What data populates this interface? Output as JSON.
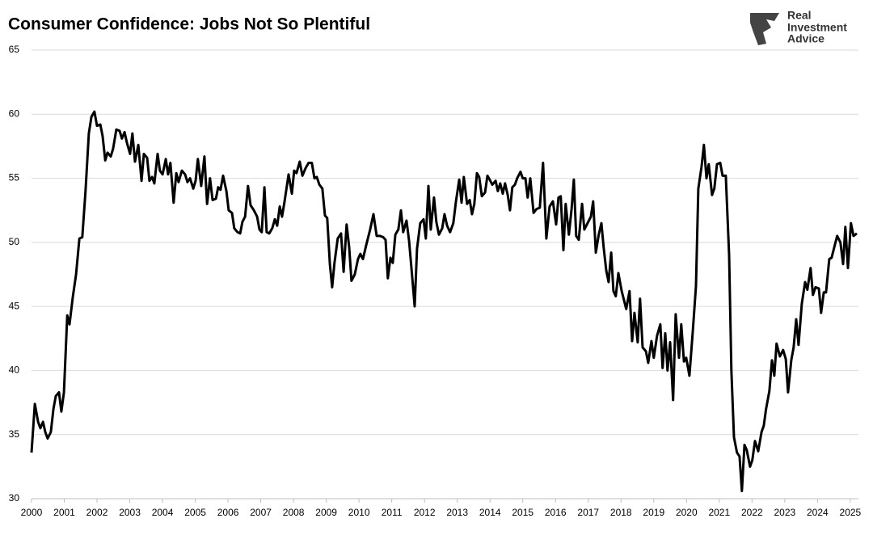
{
  "chart_data": {
    "type": "line",
    "title": "Consumer Confidence: Jobs Not So Plentiful",
    "logo": [
      "Real",
      "Investment",
      "Advice"
    ],
    "color": "#000000",
    "grid": true,
    "xlim": [
      2000,
      2025.25
    ],
    "xticks": [
      2000,
      2001,
      2002,
      2003,
      2004,
      2005,
      2006,
      2007,
      2008,
      2009,
      2010,
      2011,
      2012,
      2013,
      2014,
      2015,
      2016,
      2017,
      2018,
      2019,
      2020,
      2021,
      2022,
      2023,
      2024,
      2025
    ],
    "ylim": [
      30,
      65
    ],
    "yticks": [
      30,
      35,
      40,
      45,
      50,
      55,
      60,
      65
    ],
    "x": [
      2000.0,
      2000.1,
      2000.2,
      2000.27,
      2000.35,
      2000.42,
      2000.49,
      2000.59,
      2000.67,
      2000.74,
      2000.84,
      2000.91,
      2000.99,
      2001.09,
      2001.16,
      2001.26,
      2001.36,
      2001.46,
      2001.55,
      2001.65,
      2001.75,
      2001.83,
      2001.92,
      2002.0,
      2002.1,
      2002.17,
      2002.25,
      2002.32,
      2002.42,
      2002.49,
      2002.59,
      2002.69,
      2002.76,
      2002.84,
      2002.91,
      2003.01,
      2003.08,
      2003.16,
      2003.26,
      2003.36,
      2003.43,
      2003.53,
      2003.6,
      2003.68,
      2003.75,
      2003.85,
      2003.92,
      2004.0,
      2004.1,
      2004.17,
      2004.24,
      2004.34,
      2004.42,
      2004.49,
      2004.59,
      2004.69,
      2004.76,
      2004.84,
      2004.94,
      2005.01,
      2005.08,
      2005.18,
      2005.28,
      2005.36,
      2005.45,
      2005.53,
      2005.63,
      2005.7,
      2005.77,
      2005.85,
      2005.95,
      2006.02,
      2006.12,
      2006.19,
      2006.29,
      2006.37,
      2006.44,
      2006.52,
      2006.61,
      2006.69,
      2006.79,
      2006.89,
      2006.96,
      2007.03,
      2007.11,
      2007.18,
      2007.26,
      2007.35,
      2007.43,
      2007.5,
      2007.58,
      2007.65,
      2007.72,
      2007.85,
      2007.95,
      2008.02,
      2008.09,
      2008.19,
      2008.27,
      2008.37,
      2008.46,
      2008.56,
      2008.64,
      2008.71,
      2008.79,
      2008.88,
      2008.96,
      2009.03,
      2009.11,
      2009.18,
      2009.25,
      2009.35,
      2009.45,
      2009.53,
      2009.62,
      2009.7,
      2009.77,
      2009.87,
      2009.97,
      2010.04,
      2010.12,
      2010.22,
      2010.34,
      2010.44,
      2010.54,
      2010.64,
      2010.74,
      2010.81,
      2010.88,
      2010.96,
      2011.03,
      2011.11,
      2011.2,
      2011.28,
      2011.35,
      2011.45,
      2011.53,
      2011.6,
      2011.7,
      2011.77,
      2011.87,
      2011.97,
      2012.04,
      2012.12,
      2012.19,
      2012.29,
      2012.36,
      2012.44,
      2012.54,
      2012.61,
      2012.69,
      2012.78,
      2012.88,
      2012.96,
      2013.06,
      2013.13,
      2013.2,
      2013.3,
      2013.38,
      2013.45,
      2013.52,
      2013.6,
      2013.67,
      2013.75,
      2013.85,
      2013.92,
      2013.99,
      2014.07,
      2014.17,
      2014.24,
      2014.31,
      2014.39,
      2014.46,
      2014.54,
      2014.61,
      2014.68,
      2014.76,
      2014.83,
      2014.93,
      2015.0,
      2015.08,
      2015.15,
      2015.23,
      2015.33,
      2015.42,
      2015.52,
      2015.62,
      2015.72,
      2015.82,
      2015.92,
      2016.02,
      2016.09,
      2016.16,
      2016.24,
      2016.31,
      2016.41,
      2016.49,
      2016.56,
      2016.63,
      2016.71,
      2016.81,
      2016.88,
      2016.98,
      2017.08,
      2017.15,
      2017.23,
      2017.32,
      2017.4,
      2017.47,
      2017.55,
      2017.62,
      2017.7,
      2017.77,
      2017.84,
      2017.92,
      2018.02,
      2018.09,
      2018.16,
      2018.26,
      2018.34,
      2018.41,
      2018.51,
      2018.58,
      2018.66,
      2018.76,
      2018.83,
      2018.93,
      2019.0,
      2019.1,
      2019.2,
      2019.27,
      2019.35,
      2019.42,
      2019.5,
      2019.59,
      2019.67,
      2019.77,
      2019.84,
      2019.92,
      2019.99,
      2020.09,
      2020.19,
      2020.29,
      2020.36,
      2020.46,
      2020.53,
      2020.61,
      2020.68,
      2020.78,
      2020.85,
      2020.93,
      2021.03,
      2021.1,
      2021.2,
      2021.3,
      2021.37,
      2021.45,
      2021.54,
      2021.62,
      2021.69,
      2021.77,
      2021.84,
      2021.94,
      2022.01,
      2022.09,
      2022.19,
      2022.29,
      2022.36,
      2022.43,
      2022.53,
      2022.61,
      2022.68,
      2022.75,
      2022.85,
      2022.95,
      2023.03,
      2023.1,
      2023.2,
      2023.27,
      2023.35,
      2023.42,
      2023.52,
      2023.62,
      2023.69,
      2023.79,
      2023.86,
      2023.94,
      2024.04,
      2024.11,
      2024.19,
      2024.26,
      2024.36,
      2024.43,
      2024.53,
      2024.6,
      2024.7,
      2024.78,
      2024.85,
      2024.93,
      2025.02,
      2025.1,
      2025.2
    ],
    "values": [
      33.6,
      37.4,
      36,
      35.5,
      36,
      35.2,
      34.7,
      35.2,
      37,
      38,
      38.3,
      36.8,
      38.3,
      44.3,
      43.6,
      45.7,
      47.5,
      50.3,
      50.4,
      54,
      58.5,
      59.8,
      60.2,
      59.1,
      59.2,
      58.3,
      56.4,
      57,
      56.7,
      57.3,
      58.8,
      58.7,
      58.1,
      58.6,
      57.8,
      56.9,
      58.5,
      56.3,
      57.6,
      54.8,
      56.9,
      56.6,
      54.8,
      55.1,
      54.6,
      56.9,
      55.6,
      55.3,
      56.5,
      55.3,
      56.2,
      53.1,
      55.4,
      54.7,
      55.6,
      55.3,
      54.7,
      55,
      54.2,
      54.8,
      56.5,
      54.4,
      56.7,
      53,
      55,
      53.3,
      53.4,
      54.3,
      54.1,
      55.2,
      54,
      52.5,
      52.3,
      51.1,
      50.8,
      50.7,
      51.6,
      52,
      54.4,
      52.9,
      52.5,
      52,
      51,
      50.8,
      54.3,
      50.8,
      50.7,
      51.1,
      51.8,
      51.3,
      52.8,
      52,
      53.1,
      55.3,
      53.8,
      55.6,
      55.4,
      56.3,
      55.2,
      55.8,
      56.2,
      56.2,
      55,
      55.1,
      54.5,
      54.2,
      52.1,
      51.9,
      48.3,
      46.5,
      48.4,
      50.3,
      50.7,
      47.7,
      51.4,
      49.6,
      47,
      47.5,
      48.7,
      49.1,
      48.7,
      49.8,
      51,
      52.2,
      50.5,
      50.5,
      50.4,
      50.2,
      47.2,
      48.8,
      48.4,
      50.6,
      51,
      52.5,
      50.8,
      51.7,
      50.1,
      48,
      45,
      49.5,
      51.5,
      51.8,
      50.3,
      54.4,
      51,
      53.5,
      51.6,
      50.6,
      51.1,
      52.2,
      51.3,
      50.8,
      51.5,
      53.2,
      54.9,
      53.1,
      55.1,
      53,
      53.3,
      52.2,
      53,
      55.4,
      55.1,
      53.6,
      53.9,
      55.2,
      54.9,
      54.5,
      54.8,
      54,
      54.6,
      53.8,
      54.6,
      53.7,
      52.5,
      54.3,
      54.5,
      55,
      55.5,
      55,
      55,
      53.5,
      55,
      52.3,
      52.6,
      52.7,
      56.2,
      50.3,
      52.8,
      53.2,
      51.4,
      53.5,
      53.6,
      49.4,
      53,
      50.6,
      52.6,
      54.9,
      50.5,
      50.2,
      53,
      51,
      51.5,
      52,
      53.2,
      49.2,
      50.6,
      51.5,
      49.6,
      47.8,
      46.9,
      49.2,
      46.2,
      45.8,
      47.6,
      46.2,
      45.5,
      44.8,
      46.2,
      42.3,
      44.5,
      42.2,
      45.6,
      41.8,
      41.5,
      40.6,
      42.3,
      41,
      42.7,
      43.6,
      40.2,
      42.9,
      40,
      42.2,
      37.7,
      44.4,
      41,
      43.6,
      40.7,
      41,
      39.6,
      43,
      46.6,
      54.2,
      55.9,
      57.6,
      55,
      56.1,
      53.7,
      54.2,
      56.1,
      56.2,
      55.2,
      55.2,
      49,
      40,
      34.8,
      33.6,
      33.3,
      30.6,
      34.2,
      33.8,
      32.5,
      33,
      34.5,
      33.7,
      35.2,
      35.7,
      37,
      38.4,
      40.8,
      39.6,
      42.1,
      41.1,
      41.6,
      40.9,
      38.3,
      40.8,
      41.8,
      44,
      42,
      45.2,
      46.9,
      46.3,
      48,
      45.9,
      46.5,
      46.4,
      44.5,
      46.1,
      46.1,
      48.7,
      48.8,
      49.8,
      50.5,
      50,
      48.3,
      51.2,
      48,
      51.5,
      50.5,
      50.7
    ]
  }
}
